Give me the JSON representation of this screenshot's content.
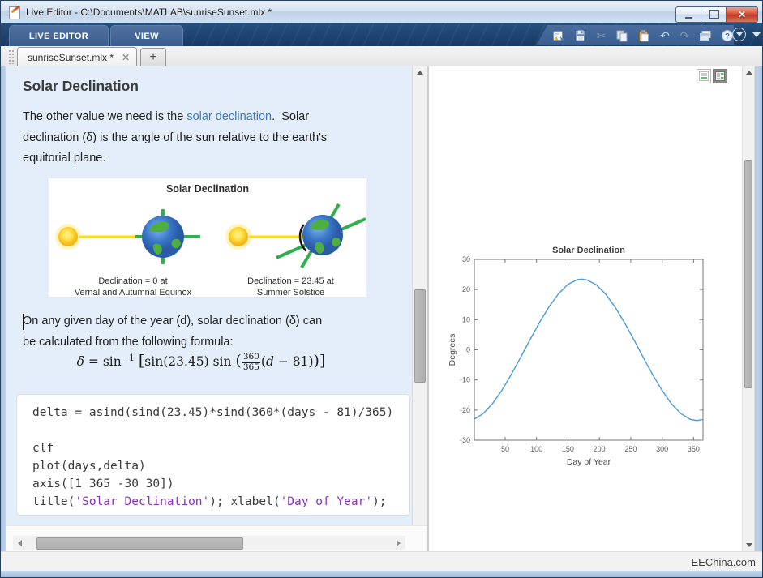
{
  "window": {
    "title": "Live Editor - C:\\Documents\\MATLAB\\sunriseSunset.mlx *"
  },
  "ribbon": {
    "tabs": [
      {
        "label": "LIVE EDITOR"
      },
      {
        "label": "VIEW"
      }
    ],
    "quick_access_icons": [
      "new-script",
      "save",
      "cut",
      "copy",
      "paste",
      "undo",
      "redo",
      "windows",
      "help"
    ]
  },
  "doc_tabs": {
    "active_label": "sunriseSunset.mlx *",
    "close_glyph": "✕",
    "new_tab_label": "+"
  },
  "document": {
    "heading": "Solar Declination",
    "para1_pre": "The other value we need is the ",
    "para1_link": "solar declination",
    "para1_post": ".  Solar\ndeclination (δ) is the angle of the sun relative to the earth's\nequitorial plane.",
    "para2": "On any given day of the year (d), solar declination (δ) can\nbe calculated from the following formula:",
    "illustration": {
      "title": "Solar Declination",
      "left_caption": "Declination = 0 at\nVernal and Autumnal Equinox",
      "right_caption": "Declination = 23.45 at\nSummer Solstice"
    },
    "formula": {
      "delta": "δ",
      "eq": " = ",
      "sin1": "sin",
      "sup": "−1",
      "lb": "[",
      "body1": "sin(23.45) sin ",
      "lp": "(",
      "num": "360",
      "den": "365",
      "arg1": "(",
      "d": "d",
      "arg2": " − 81)",
      "rp": ")",
      "rb": "]"
    },
    "code_lines": [
      [
        [
          "delta = asind(sind(23.45)*sind(360*(days - 81)/365)",
          "k"
        ]
      ],
      [
        [
          "",
          "k"
        ]
      ],
      [
        [
          "clf",
          "k"
        ]
      ],
      [
        [
          "plot(days,delta)",
          "k"
        ]
      ],
      [
        [
          "axis([1 365 -30 30])",
          "k"
        ]
      ],
      [
        [
          "title(",
          "k"
        ],
        [
          "'Solar Declination'",
          "s"
        ],
        [
          "); xlabel(",
          "k"
        ],
        [
          "'Day of Year'",
          "s"
        ],
        [
          ");",
          "k"
        ]
      ]
    ]
  },
  "colors": {
    "link": "#3f7ac2",
    "code_string": "#8b2fc4",
    "plot_line": "#4a9cd8",
    "doc_background": "#e4eefa",
    "ribbon_background": "#1c3f6a"
  },
  "chart_data": {
    "type": "line",
    "title": "Solar Declination",
    "xlabel": "Day of Year",
    "ylabel": "Degrees",
    "xlim": [
      1,
      365
    ],
    "ylim": [
      -30,
      30
    ],
    "xticks": [
      50,
      100,
      150,
      200,
      250,
      300,
      350
    ],
    "yticks": [
      -30,
      -20,
      -10,
      0,
      10,
      20,
      30
    ],
    "grid": false,
    "legend": null,
    "line_color": "#4a9cd8",
    "series": [
      {
        "name": "delta = asind(sind(23.45)*sind(360*(days - 81)/365))",
        "points": [
          [
            1,
            -23.0
          ],
          [
            15,
            -21.2
          ],
          [
            30,
            -17.8
          ],
          [
            45,
            -13.4
          ],
          [
            60,
            -8.1
          ],
          [
            75,
            -2.4
          ],
          [
            81,
            0.0
          ],
          [
            90,
            3.5
          ],
          [
            105,
            9.2
          ],
          [
            120,
            14.3
          ],
          [
            135,
            18.6
          ],
          [
            150,
            21.7
          ],
          [
            165,
            23.3
          ],
          [
            172,
            23.45
          ],
          [
            180,
            23.2
          ],
          [
            195,
            21.6
          ],
          [
            210,
            18.5
          ],
          [
            225,
            14.2
          ],
          [
            240,
            9.0
          ],
          [
            255,
            3.3
          ],
          [
            263,
            0.2
          ],
          [
            270,
            -2.6
          ],
          [
            285,
            -8.3
          ],
          [
            300,
            -13.5
          ],
          [
            315,
            -18.0
          ],
          [
            330,
            -21.2
          ],
          [
            345,
            -23.1
          ],
          [
            355,
            -23.45
          ],
          [
            365,
            -23.1
          ]
        ]
      }
    ]
  },
  "statusbar": {
    "watermark": "EEChina.com"
  }
}
